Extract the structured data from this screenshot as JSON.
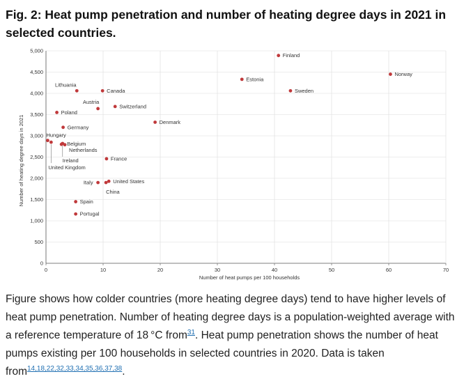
{
  "title": "Fig. 2: Heat pump penetration and number of heating degree days in 2021 in selected countries.",
  "chart_data": {
    "type": "scatter",
    "xlabel": "Number of heat pumps per 100 households",
    "ylabel": "Number of heating degree days in 2021",
    "xlim": [
      0,
      70
    ],
    "ylim": [
      0,
      5000
    ],
    "xticks": [
      "0",
      "10",
      "20",
      "30",
      "40",
      "50",
      "60",
      "70"
    ],
    "yticks": [
      "0",
      "500",
      "1,000",
      "1,500",
      "2,000",
      "2,500",
      "3,000",
      "3,500",
      "4,000",
      "4,500",
      "5,000"
    ],
    "grid": true,
    "point_color": "#c0393b",
    "points": [
      {
        "label": "Finland",
        "x": 40.7,
        "y": 4890
      },
      {
        "label": "Norway",
        "x": 60.3,
        "y": 4450
      },
      {
        "label": "Estonia",
        "x": 34.3,
        "y": 4330
      },
      {
        "label": "Sweden",
        "x": 42.8,
        "y": 4060
      },
      {
        "label": "Lithuania",
        "x": 5.4,
        "y": 4060
      },
      {
        "label": "Canada",
        "x": 9.9,
        "y": 4060
      },
      {
        "label": "Austria",
        "x": 9.1,
        "y": 3640
      },
      {
        "label": "Switzerland",
        "x": 12.1,
        "y": 3690
      },
      {
        "label": "Poland",
        "x": 1.9,
        "y": 3550
      },
      {
        "label": "Denmark",
        "x": 19.1,
        "y": 3320
      },
      {
        "label": "Germany",
        "x": 3.0,
        "y": 3200
      },
      {
        "label": "Hungary",
        "x": 0.3,
        "y": 2890
      },
      {
        "label": "United Kingdom",
        "x": 0.9,
        "y": 2850
      },
      {
        "label": "Belgium",
        "x": 2.7,
        "y": 2800
      },
      {
        "label": "Netherlands",
        "x": 3.3,
        "y": 2790
      },
      {
        "label": "Ireland",
        "x": 2.9,
        "y": 2820
      },
      {
        "label": "France",
        "x": 10.6,
        "y": 2460
      },
      {
        "label": "Italy",
        "x": 9.1,
        "y": 1900
      },
      {
        "label": "United States",
        "x": 11.0,
        "y": 1930
      },
      {
        "label": "China",
        "x": 10.5,
        "y": 1900
      },
      {
        "label": "Spain",
        "x": 5.2,
        "y": 1450
      },
      {
        "label": "Portugal",
        "x": 5.2,
        "y": 1160
      }
    ]
  },
  "caption": {
    "text": "Figure shows how colder countries (more heating degree days) tend to have higher levels of heat pump penetration. Number of heating degree days is a population-weighted average with a reference temperature of 18 °C from",
    "ref1": "31",
    "text2": ". Heat pump penetration shows the number of heat pumps existing per 100 households in selected countries in 2020. Data is taken from",
    "refs2": "14,18,22,32,33,34,35,36,37,38",
    "end": "."
  }
}
